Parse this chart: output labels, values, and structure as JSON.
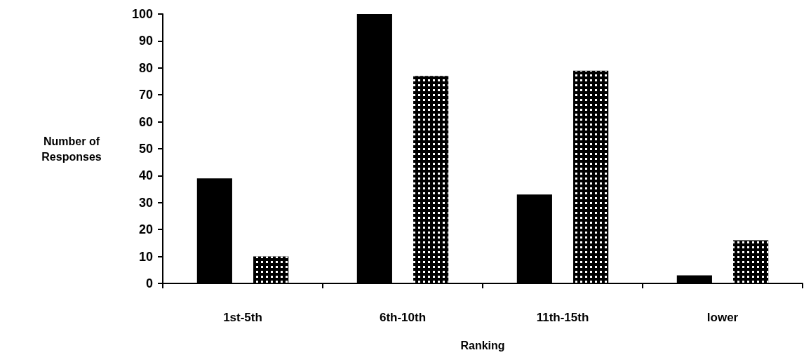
{
  "chart_data": {
    "type": "bar",
    "xlabel": "Ranking",
    "ylabel": "Number of Responses",
    "categories": [
      "1st-5th",
      "6th-10th",
      "11th-15th",
      "lower"
    ],
    "series": [
      {
        "color": "#000000",
        "values": [
          39,
          100,
          33,
          3
        ]
      },
      {
        "color": "#000000",
        "values": [
          10,
          77,
          79,
          16
        ]
      }
    ],
    "ylim": [
      0,
      100
    ],
    "yticks": [
      0,
      10,
      20,
      30,
      40,
      50,
      60,
      70,
      80,
      90,
      100
    ],
    "grid": false
  }
}
